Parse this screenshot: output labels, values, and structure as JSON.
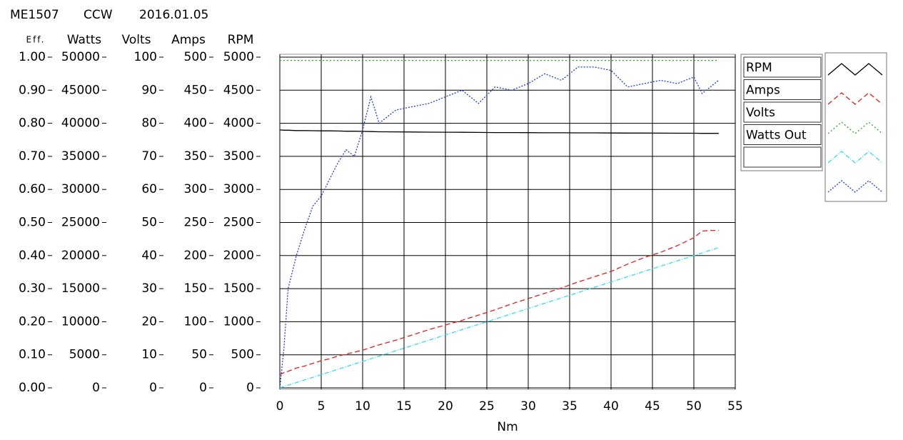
{
  "header": [
    "ME1507",
    "CCW",
    "2016.01.05"
  ],
  "chart_data": {
    "type": "line",
    "xlabel": "Nm",
    "x": [
      0,
      0.5,
      1,
      2,
      3,
      4,
      5,
      6,
      7,
      8,
      9,
      10,
      11,
      12,
      14,
      16,
      18,
      20,
      22,
      24,
      26,
      28,
      30,
      32,
      34,
      36,
      38,
      40,
      42,
      44,
      46,
      48,
      50,
      51,
      52,
      53
    ],
    "xlim": [
      0,
      55
    ],
    "xticks": [
      0,
      5,
      10,
      15,
      20,
      25,
      30,
      35,
      40,
      45,
      50,
      55
    ],
    "ylabel": "RPM",
    "ylim": [
      0,
      5000
    ],
    "yticks": [
      0,
      500,
      1000,
      1500,
      2000,
      2500,
      3000,
      3500,
      4000,
      4500,
      5000
    ],
    "ycolor": "#000000",
    "y2label": "Amps",
    "y2lim": [
      0,
      500
    ],
    "y2ticks": [
      0,
      50,
      100,
      150,
      200,
      250,
      300,
      350,
      400,
      450,
      500
    ],
    "y2color": "#e02020",
    "y3label": "Volts",
    "y3lim": [
      0,
      100
    ],
    "y3ticks": [
      0,
      10,
      20,
      30,
      40,
      50,
      60,
      70,
      80,
      90,
      100
    ],
    "y3color": "#22cc22",
    "y4label": "Watts",
    "y4lim": [
      0,
      50000
    ],
    "y4ticks": [
      0,
      5000,
      10000,
      15000,
      20000,
      25000,
      30000,
      35000,
      40000,
      45000,
      50000
    ],
    "y4color": "#33dded",
    "y5label": "Eff.",
    "y5lim": [
      0,
      1
    ],
    "y5ticks": [
      {
        "value": 0,
        "label": "0.00"
      },
      {
        "value": 0.1,
        "label": "0.10"
      },
      {
        "value": 0.2,
        "label": "0.20"
      },
      {
        "value": 0.3,
        "label": "0.30"
      },
      {
        "value": 0.4,
        "label": "0.40"
      },
      {
        "value": 0.5,
        "label": "0.50"
      },
      {
        "value": 0.6,
        "label": "0.60"
      },
      {
        "value": 0.7,
        "label": "0.70"
      },
      {
        "value": 0.8,
        "label": "0.80"
      },
      {
        "value": 0.9,
        "label": "0.90"
      },
      {
        "value": 1,
        "label": "1.00"
      }
    ],
    "y5color": "#8095e0",
    "grid": true,
    "series": [
      {
        "name": "RPM",
        "color": "#000000",
        "axis": "y",
        "values": [
          3900,
          3895,
          3895,
          3890,
          3890,
          3888,
          3885,
          3885,
          3883,
          3880,
          3880,
          3878,
          3875,
          3872,
          3870,
          3868,
          3866,
          3865,
          3864,
          3862,
          3860,
          3860,
          3858,
          3856,
          3856,
          3855,
          3855,
          3853,
          3852,
          3852,
          3851,
          3850,
          3850,
          3848,
          3848,
          3848
        ]
      },
      {
        "name": "Amps",
        "color": "#e02020",
        "axis": "y2",
        "values": [
          20,
          23,
          25,
          30,
          33,
          37,
          41,
          44,
          48,
          51,
          54,
          57,
          61,
          65,
          72,
          80,
          88,
          95,
          102,
          110,
          118,
          127,
          135,
          143,
          151,
          160,
          168,
          176,
          187,
          197,
          205,
          215,
          227,
          237,
          238,
          238
        ]
      },
      {
        "name": "Volts",
        "color": "#22aa22",
        "axis": "y3",
        "values": [
          99,
          99,
          99,
          99,
          99,
          99,
          99,
          99,
          99,
          99,
          99,
          99,
          99,
          99,
          99,
          99,
          99,
          99,
          99,
          99,
          99,
          99,
          99,
          99,
          99,
          99,
          99,
          99,
          99,
          99,
          99,
          99,
          99,
          99,
          99,
          99
        ]
      },
      {
        "name": "Watts Out",
        "color": "#33dded",
        "axis": "y4",
        "values": [
          0,
          200,
          400,
          800,
          1200,
          1600,
          2000,
          2400,
          2800,
          3200,
          3600,
          4000,
          4400,
          4800,
          5600,
          6400,
          7200,
          8000,
          8800,
          9600,
          10400,
          11200,
          12000,
          12800,
          13600,
          14400,
          15200,
          16000,
          16800,
          17600,
          18400,
          19200,
          20000,
          20400,
          20800,
          21200
        ]
      },
      {
        "color": "#2040d0",
        "axis": "y5",
        "values": [
          0,
          0.12,
          0.3,
          0.4,
          0.48,
          0.55,
          0.58,
          0.63,
          0.68,
          0.72,
          0.7,
          0.78,
          0.88,
          0.8,
          0.84,
          0.85,
          0.86,
          0.88,
          0.9,
          0.86,
          0.91,
          0.9,
          0.92,
          0.95,
          0.93,
          0.97,
          0.97,
          0.96,
          0.91,
          0.92,
          0.93,
          0.92,
          0.94,
          0.89,
          0.91,
          0.93
        ]
      }
    ]
  }
}
